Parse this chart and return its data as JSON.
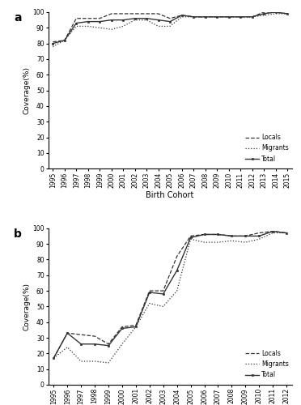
{
  "panel_a": {
    "years": [
      1995,
      1996,
      1997,
      1998,
      1999,
      2000,
      2001,
      2002,
      2003,
      2004,
      2005,
      2006,
      2007,
      2008,
      2009,
      2010,
      2011,
      2012,
      2013,
      2014,
      2015
    ],
    "locals": [
      81,
      82,
      96,
      96,
      96,
      99,
      99,
      99,
      99,
      99,
      96,
      98,
      97,
      97,
      97,
      97,
      97,
      97,
      100,
      100,
      99
    ],
    "migrants": [
      78,
      82,
      91,
      91,
      90,
      89,
      91,
      95,
      95,
      91,
      91,
      97,
      97,
      97,
      97,
      97,
      97,
      97,
      98,
      99,
      99
    ],
    "total": [
      80,
      82,
      93,
      94,
      94,
      95,
      95,
      96,
      96,
      95,
      94,
      98,
      97,
      97,
      97,
      97,
      97,
      97,
      99,
      100,
      99
    ]
  },
  "panel_b": {
    "years": [
      1995,
      1996,
      1997,
      1998,
      1999,
      2000,
      2001,
      2002,
      2003,
      2004,
      2005,
      2006,
      2007,
      2008,
      2009,
      2010,
      2011,
      2012
    ],
    "locals": [
      17,
      33,
      32,
      31,
      26,
      37,
      38,
      60,
      60,
      82,
      95,
      96,
      96,
      95,
      95,
      97,
      98,
      97
    ],
    "migrants": [
      17,
      24,
      15,
      15,
      14,
      26,
      37,
      52,
      50,
      60,
      93,
      91,
      91,
      92,
      91,
      93,
      97,
      97
    ],
    "total": [
      17,
      33,
      26,
      26,
      25,
      36,
      37,
      59,
      58,
      73,
      94,
      96,
      96,
      95,
      95,
      95,
      98,
      97
    ]
  },
  "line_color": "#333333",
  "ylabel": "Coverage(%)",
  "xlabel": "Birth Cohort",
  "yticks": [
    0,
    10,
    20,
    30,
    40,
    50,
    60,
    70,
    80,
    90,
    100
  ]
}
